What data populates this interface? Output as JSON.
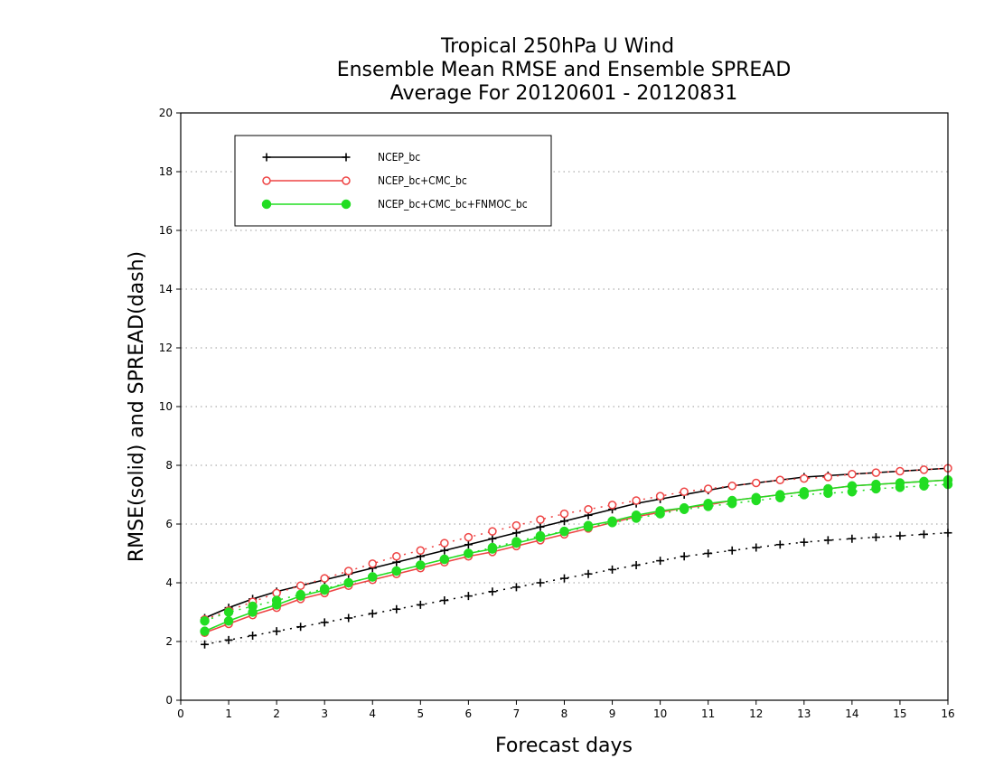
{
  "chart_data": {
    "type": "line",
    "title": [
      "Tropical 250hPa U Wind",
      "Ensemble Mean RMSE and Ensemble SPREAD",
      "Average For 20120601 - 20120831"
    ],
    "xlabel": "Forecast days",
    "ylabel": "RMSE(solid) and SPREAD(dash)",
    "xlim": [
      0,
      16
    ],
    "ylim": [
      0,
      20
    ],
    "xticks": [
      0,
      1,
      2,
      3,
      4,
      5,
      6,
      7,
      8,
      9,
      10,
      11,
      12,
      13,
      14,
      15,
      16
    ],
    "yticks": [
      0,
      2,
      4,
      6,
      8,
      10,
      12,
      14,
      16,
      18,
      20
    ],
    "grid": "horizontal-dotted",
    "legend_position": "top-left",
    "x": [
      0.5,
      1,
      1.5,
      2,
      2.5,
      3,
      3.5,
      4,
      4.5,
      5,
      5.5,
      6,
      6.5,
      7,
      7.5,
      8,
      8.5,
      9,
      9.5,
      10,
      10.5,
      11,
      11.5,
      12,
      12.5,
      13,
      13.5,
      14,
      14.5,
      15,
      15.5,
      16
    ],
    "series": [
      {
        "name": "NCEP_bc",
        "marker": "plus",
        "color": "#000000",
        "rmse": [
          2.8,
          3.15,
          3.45,
          3.7,
          3.9,
          4.1,
          4.3,
          4.5,
          4.7,
          4.9,
          5.1,
          5.3,
          5.5,
          5.7,
          5.9,
          6.1,
          6.3,
          6.5,
          6.7,
          6.85,
          7.0,
          7.15,
          7.3,
          7.4,
          7.5,
          7.6,
          7.65,
          7.7,
          7.75,
          7.8,
          7.85,
          7.9
        ],
        "spread": [
          1.9,
          2.05,
          2.2,
          2.35,
          2.5,
          2.65,
          2.8,
          2.95,
          3.1,
          3.25,
          3.4,
          3.55,
          3.7,
          3.85,
          4.0,
          4.15,
          4.3,
          4.45,
          4.6,
          4.75,
          4.9,
          5.0,
          5.1,
          5.2,
          5.3,
          5.38,
          5.45,
          5.5,
          5.55,
          5.6,
          5.65,
          5.7
        ]
      },
      {
        "name": "NCEP_bc+CMC_bc",
        "marker": "open-circle",
        "color": "#ee4444",
        "rmse": [
          2.3,
          2.6,
          2.9,
          3.15,
          3.45,
          3.65,
          3.9,
          4.1,
          4.3,
          4.5,
          4.7,
          4.9,
          5.05,
          5.25,
          5.45,
          5.65,
          5.85,
          6.05,
          6.25,
          6.4,
          6.55,
          6.65,
          6.8,
          6.9,
          7.0,
          7.1,
          7.2,
          7.3,
          7.35,
          7.4,
          7.45,
          7.5
        ],
        "spread": [
          2.75,
          3.05,
          3.35,
          3.65,
          3.9,
          4.15,
          4.4,
          4.65,
          4.9,
          5.1,
          5.35,
          5.55,
          5.75,
          5.95,
          6.15,
          6.35,
          6.5,
          6.65,
          6.8,
          6.95,
          7.1,
          7.2,
          7.3,
          7.4,
          7.5,
          7.55,
          7.6,
          7.7,
          7.75,
          7.8,
          7.85,
          7.9
        ]
      },
      {
        "name": "NCEP_bc+CMC_bc+FNMOC_bc",
        "marker": "filled-circle",
        "color": "#22dd22",
        "rmse": [
          2.35,
          2.7,
          3.0,
          3.25,
          3.55,
          3.75,
          4.0,
          4.2,
          4.4,
          4.6,
          4.8,
          5.0,
          5.15,
          5.35,
          5.55,
          5.75,
          5.95,
          6.1,
          6.3,
          6.45,
          6.55,
          6.7,
          6.8,
          6.9,
          7.0,
          7.1,
          7.2,
          7.3,
          7.35,
          7.4,
          7.45,
          7.5
        ],
        "spread": [
          2.7,
          3.0,
          3.2,
          3.4,
          3.6,
          3.8,
          4.0,
          4.2,
          4.4,
          4.6,
          4.8,
          5.0,
          5.2,
          5.4,
          5.6,
          5.75,
          5.9,
          6.05,
          6.2,
          6.35,
          6.5,
          6.6,
          6.7,
          6.8,
          6.9,
          7.0,
          7.05,
          7.1,
          7.2,
          7.25,
          7.3,
          7.35
        ]
      }
    ]
  }
}
